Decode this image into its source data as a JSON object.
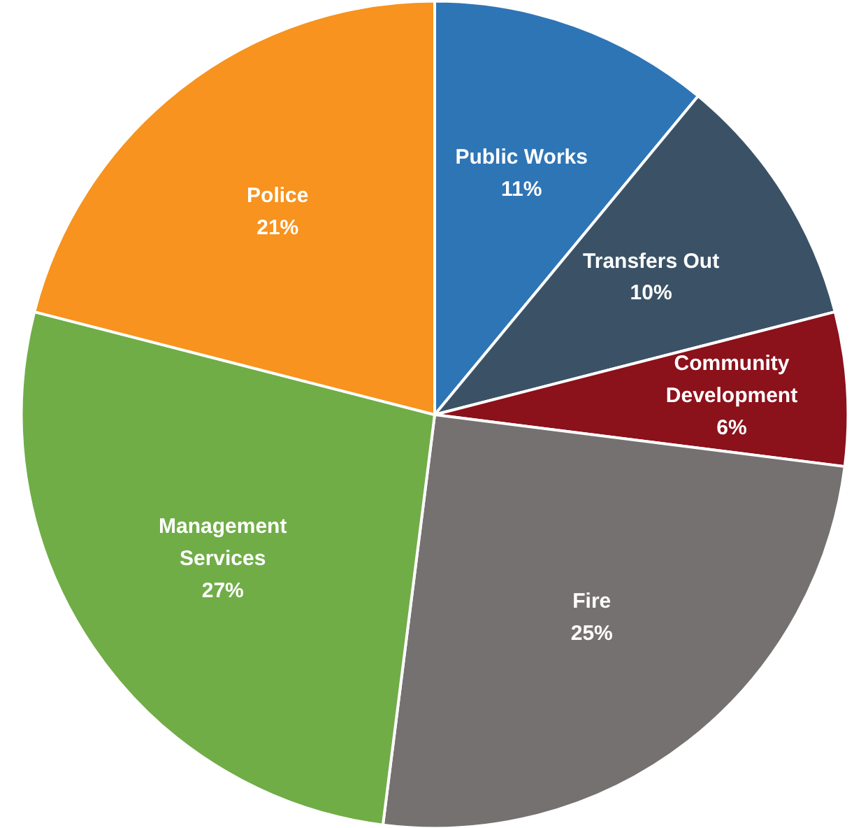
{
  "chart_data": {
    "type": "pie",
    "categories": [
      "Public Works",
      "Transfers Out",
      "Community Development",
      "Fire",
      "Management Services",
      "Police"
    ],
    "values": [
      11,
      10,
      6,
      25,
      27,
      21
    ],
    "value_labels": [
      "11%",
      "10%",
      "6%",
      "25%",
      "27%",
      "21%"
    ],
    "colors": [
      "#2e75b6",
      "#3b5266",
      "#8b111b",
      "#767171",
      "#70ad47",
      "#f7931e"
    ]
  }
}
